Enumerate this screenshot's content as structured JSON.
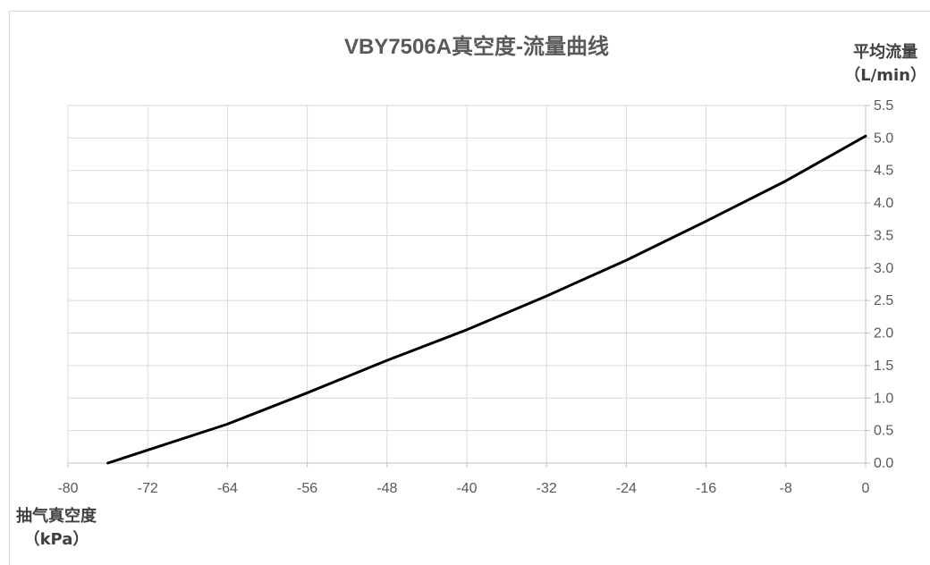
{
  "chart_data": {
    "type": "line",
    "title": "VBY7506A真空度-流量曲线",
    "ylabel_line1": "平均流量",
    "ylabel_line2": "（L/min）",
    "xlabel_line1": "抽气真空度",
    "xlabel_line2": "（kPa）",
    "xlim": [
      -80,
      0
    ],
    "ylim": [
      0,
      5.5
    ],
    "x_ticks": [
      -80,
      -72,
      -64,
      -56,
      -48,
      -40,
      -32,
      -24,
      -16,
      -8,
      0
    ],
    "y_ticks": [
      "0.0",
      "0.5",
      "1.0",
      "1.5",
      "2.0",
      "2.5",
      "3.0",
      "3.5",
      "4.0",
      "4.5",
      "5.0",
      "5.5"
    ],
    "grid": true,
    "series": [
      {
        "x": [
          -76,
          -72,
          -64,
          -56,
          -48,
          -40,
          -32,
          -24,
          -16,
          -8,
          0
        ],
        "y": [
          0.0,
          0.2,
          0.6,
          1.08,
          1.58,
          2.05,
          2.57,
          3.12,
          3.72,
          4.34,
          5.03
        ],
        "color": "#000000"
      }
    ]
  }
}
